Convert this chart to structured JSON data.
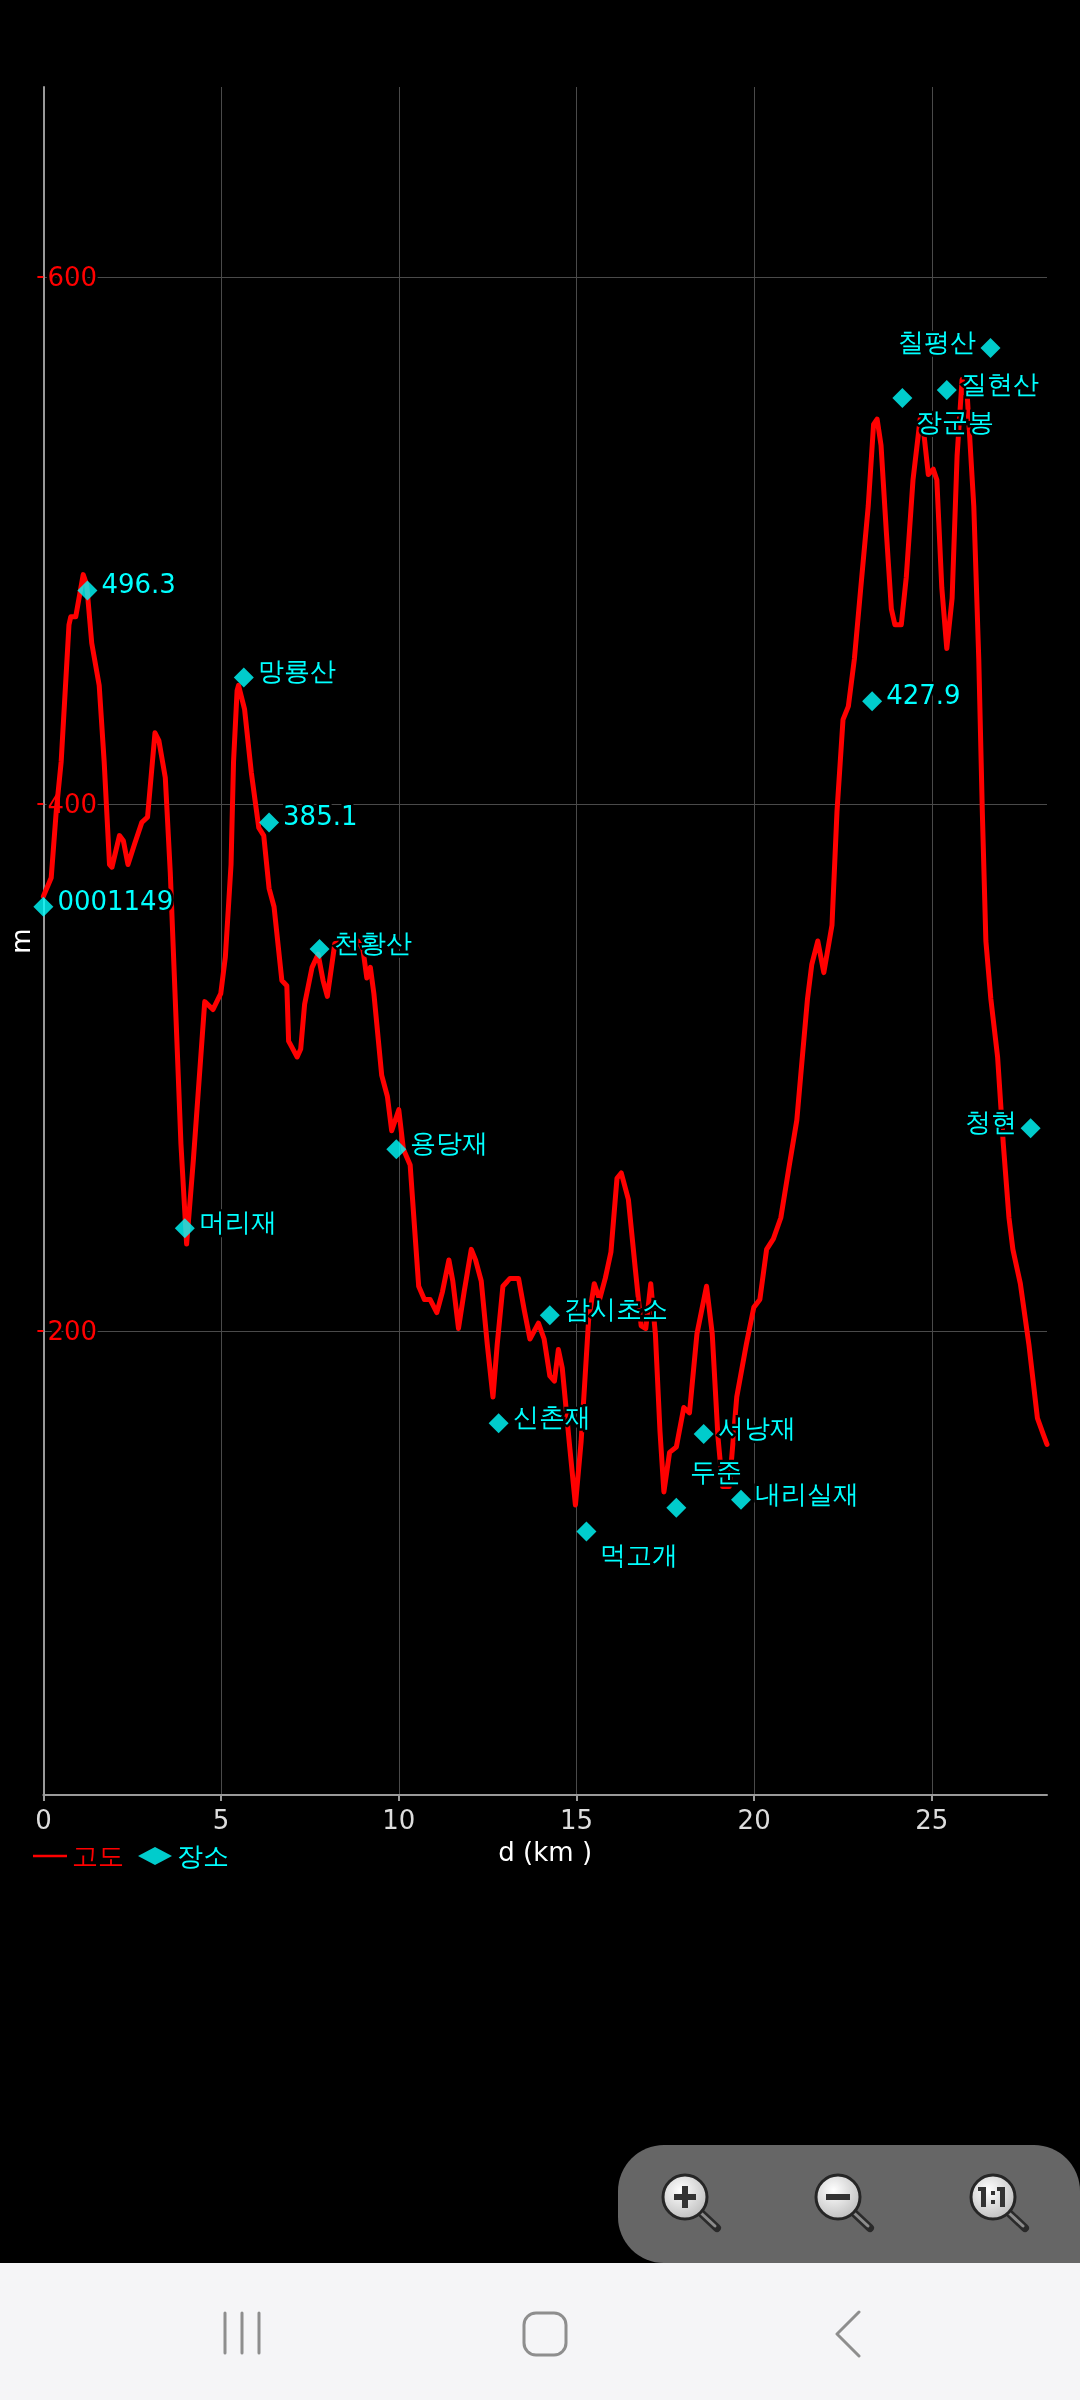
{
  "chart_data": {
    "type": "line",
    "xlabel": "d (km )",
    "ylabel": "m",
    "xlim": [
      0,
      28.24
    ],
    "ylim": [
      24,
      672
    ],
    "xticks": [
      0,
      5,
      10,
      15,
      20,
      25
    ],
    "yticks": [
      200,
      400,
      600
    ],
    "grid": true,
    "legend": "bottom left",
    "series": [
      {
        "name": "고도",
        "color": "#ff0000",
        "marker": "none",
        "x": [
          0,
          0.22,
          0.36,
          0.5,
          0.72,
          0.77,
          0.91,
          1.12,
          1.22,
          1.36,
          1.57,
          1.71,
          1.86,
          1.93,
          2.14,
          2.25,
          2.38,
          2.57,
          2.77,
          2.93,
          3.14,
          3.25,
          3.43,
          3.57,
          3.71,
          3.87,
          4.03,
          4.22,
          4.54,
          4.77,
          4.99,
          5.12,
          5.28,
          5.35,
          5.45,
          5.49,
          5.66,
          5.85,
          6.06,
          6.2,
          6.35,
          6.49,
          6.71,
          6.85,
          6.9,
          6.98,
          7.14,
          7.24,
          7.35,
          7.56,
          7.73,
          7.87,
          7.99,
          8.2,
          8.42,
          8.84,
          8.99,
          9.1,
          9.2,
          9.3,
          9.52,
          9.68,
          9.8,
          10.0,
          10.13,
          10.32,
          10.56,
          10.72,
          10.88,
          11.07,
          11.23,
          11.41,
          11.52,
          11.68,
          11.84,
          12.04,
          12.16,
          12.32,
          12.49,
          12.65,
          12.77,
          12.93,
          13.13,
          13.37,
          13.53,
          13.69,
          13.93,
          14.09,
          14.25,
          14.38,
          14.49,
          14.6,
          14.81,
          14.97,
          15.13,
          15.34,
          15.5,
          15.65,
          15.81,
          15.97,
          16.14,
          16.26,
          16.46,
          16.66,
          16.82,
          16.95,
          17.09,
          17.22,
          17.35,
          17.46,
          17.62,
          17.81,
          18.02,
          18.18,
          18.39,
          18.66,
          18.82,
          18.98,
          19.11,
          19.3,
          19.51,
          19.78,
          19.99,
          20.16,
          20.35,
          20.54,
          20.75,
          20.99,
          21.2,
          21.31,
          21.5,
          21.62,
          21.79,
          21.96,
          22.19,
          22.33,
          22.5,
          22.65,
          22.82,
          23.0,
          23.21,
          23.36,
          23.46,
          23.57,
          23.72,
          23.86,
          23.96,
          24.14,
          24.28,
          24.47,
          24.67,
          24.78,
          24.9,
          25.04,
          25.14,
          25.28,
          25.42,
          25.57,
          25.71,
          25.85,
          26.0,
          26.18,
          26.32,
          26.42,
          26.52,
          26.66,
          26.85,
          27.01,
          27.17,
          27.28,
          27.49,
          27.73,
          27.97,
          28.13,
          28.24
        ],
        "values": [
          365,
          372,
          397,
          416,
          468,
          471,
          471,
          487,
          483,
          461,
          445,
          416,
          377,
          376,
          388,
          386,
          377,
          385,
          393,
          395,
          427,
          424,
          410,
          374,
          326,
          271,
          233,
          265,
          325,
          322,
          328,
          342,
          377,
          416,
          443,
          445,
          436,
          412,
          391,
          388,
          368,
          361,
          333,
          331,
          310,
          308,
          304,
          307,
          324,
          338,
          343,
          333,
          327,
          347,
          348,
          348,
          345,
          334,
          338,
          328,
          297,
          289,
          276,
          284,
          269,
          263,
          217,
          212,
          212,
          207,
          215,
          227,
          219,
          201,
          215,
          231,
          227,
          219,
          195,
          175,
          195,
          217,
          220,
          220,
          208,
          197,
          203,
          197,
          183,
          181,
          193,
          186,
          156,
          134,
          158,
          204,
          218,
          212,
          220,
          230,
          258,
          260,
          250,
          223,
          202,
          201,
          218,
          199,
          162,
          139,
          154,
          156,
          171,
          169,
          199,
          217,
          199,
          160,
          141,
          141,
          175,
          195,
          209,
          212,
          231,
          235,
          243,
          263,
          280,
          297,
          326,
          339,
          348,
          336,
          354,
          397,
          432,
          437,
          455,
          482,
          513,
          544,
          546,
          536,
          503,
          474,
          468,
          468,
          486,
          523,
          546,
          540,
          525,
          527,
          523,
          482,
          459,
          478,
          532,
          561,
          554,
          513,
          455,
          397,
          348,
          326,
          304,
          271,
          243,
          231,
          218,
          195,
          167,
          161,
          157
        ]
      },
      {
        "name": "장소",
        "type": "scatter",
        "color": "#00ffff",
        "marker": "diamond",
        "x": [
          0,
          1.24,
          3.98,
          5.64,
          6.35,
          7.77,
          9.93,
          12.81,
          14.25,
          15.28,
          17.81,
          18.58,
          19.63,
          23.32,
          24.17,
          25.42,
          26.65,
          27.78
        ],
        "values": [
          361,
          481,
          239,
          448,
          393,
          345,
          269,
          165,
          206,
          124,
          133,
          161,
          136,
          439,
          554,
          557,
          573,
          277
        ]
      }
    ],
    "annotations": [
      {
        "text": "0001149",
        "x": 0,
        "y": 361
      },
      {
        "text": "496.3",
        "x": 1.24,
        "y": 481
      },
      {
        "text": "머리재",
        "x": 3.98,
        "y": 239
      },
      {
        "text": "망룡산",
        "x": 5.64,
        "y": 448
      },
      {
        "text": "385.1",
        "x": 6.35,
        "y": 393
      },
      {
        "text": "천황산",
        "x": 7.77,
        "y": 345
      },
      {
        "text": "용당재",
        "x": 9.93,
        "y": 269
      },
      {
        "text": "신촌재",
        "x": 12.81,
        "y": 165
      },
      {
        "text": "감시초소",
        "x": 14.25,
        "y": 206
      },
      {
        "text": "먹고개",
        "x": 15.28,
        "y": 124
      },
      {
        "text": "두준",
        "x": 17.81,
        "y": 133
      },
      {
        "text": "서낭재",
        "x": 18.58,
        "y": 161
      },
      {
        "text": "내리실재",
        "x": 19.63,
        "y": 136
      },
      {
        "text": "427.9",
        "x": 23.32,
        "y": 439
      },
      {
        "text": "장군봉",
        "x": 24.17,
        "y": 554
      },
      {
        "text": "질현산",
        "x": 25.42,
        "y": 557
      },
      {
        "text": "칠평산",
        "x": 26.65,
        "y": 573
      },
      {
        "text": "청현",
        "x": 27.78,
        "y": 277
      }
    ]
  }
}
